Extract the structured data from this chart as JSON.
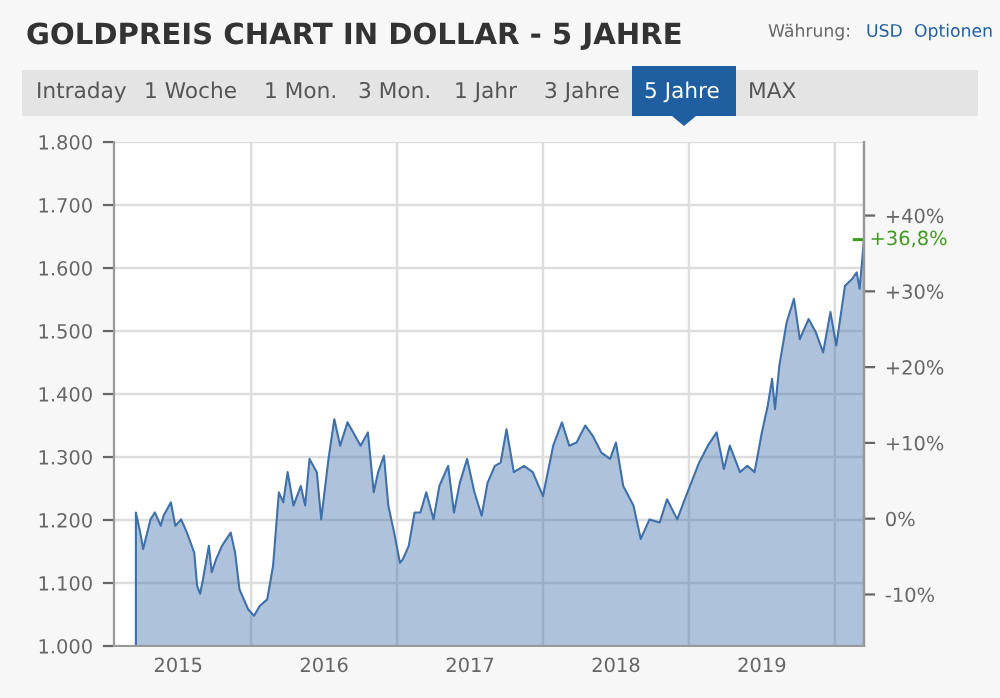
{
  "chart_data": {
    "type": "area",
    "title": "GOLDPREIS CHART IN DOLLAR - 5 JAHRE",
    "annotations": [
      "Währung:",
      "USD",
      "Optionen",
      "Intraday",
      "1 Woche",
      "1 Mon.",
      "3 Mon.",
      "1 Jahr",
      "3 Jahre",
      "5 Jahre",
      "MAX",
      {
        "text": "+36,8%",
        "x": 2019.7,
        "y": 1645
      }
    ],
    "x": [
      2014.71,
      2014.74,
      2014.76,
      2014.81,
      2014.84,
      2014.88,
      2014.9,
      2014.95,
      2014.98,
      2015.02,
      2015.06,
      2015.11,
      2015.13,
      2015.15,
      2015.17,
      2015.21,
      2015.23,
      2015.26,
      2015.3,
      2015.36,
      2015.39,
      2015.42,
      2015.48,
      2015.52,
      2015.56,
      2015.61,
      2015.65,
      2015.69,
      2015.72,
      2015.75,
      2015.79,
      2015.84,
      2015.87,
      2015.9,
      2015.95,
      2015.98,
      2016.03,
      2016.07,
      2016.11,
      2016.16,
      2016.2,
      2016.25,
      2016.3,
      2016.34,
      2016.37,
      2016.41,
      2016.44,
      2016.48,
      2016.52,
      2016.54,
      2016.58,
      2016.62,
      2016.66,
      2016.7,
      2016.75,
      2016.79,
      2016.85,
      2016.89,
      2016.93,
      2016.98,
      2017.03,
      2017.08,
      2017.12,
      2017.17,
      2017.21,
      2017.25,
      2017.3,
      2017.37,
      2017.43,
      2017.5,
      2017.57,
      2017.63,
      2017.68,
      2017.73,
      2017.79,
      2017.84,
      2017.9,
      2017.96,
      2018.0,
      2018.05,
      2018.12,
      2018.17,
      2018.23,
      2018.3,
      2018.35,
      2018.42,
      2018.48,
      2018.57,
      2018.63,
      2018.69,
      2018.74,
      2018.78,
      2018.85,
      2018.9,
      2018.95,
      2019.0,
      2019.04,
      2019.07,
      2019.09,
      2019.12,
      2019.17,
      2019.22,
      2019.26,
      2019.32,
      2019.37,
      2019.42,
      2019.47,
      2019.51,
      2019.57,
      2019.62,
      2019.65,
      2019.67,
      2019.7
    ],
    "series": [
      {
        "color": "#3f70aa",
        "values": [
          1212,
          1180,
          1154,
          1201,
          1212,
          1191,
          1207,
          1228,
          1191,
          1201,
          1180,
          1148,
          1095,
          1083,
          1106,
          1159,
          1117,
          1138,
          1159,
          1180,
          1148,
          1090,
          1058,
          1048,
          1064,
          1074,
          1127,
          1244,
          1228,
          1276,
          1223,
          1254,
          1223,
          1297,
          1276,
          1201,
          1297,
          1360,
          1318,
          1355,
          1339,
          1318,
          1339,
          1244,
          1276,
          1302,
          1223,
          1180,
          1132,
          1138,
          1159,
          1212,
          1212,
          1244,
          1201,
          1254,
          1286,
          1212,
          1259,
          1297,
          1244,
          1207,
          1259,
          1286,
          1291,
          1344,
          1276,
          1286,
          1276,
          1238,
          1318,
          1355,
          1318,
          1323,
          1350,
          1334,
          1307,
          1297,
          1323,
          1254,
          1223,
          1170,
          1201,
          1196,
          1233,
          1201,
          1238,
          1291,
          1318,
          1339,
          1281,
          1318,
          1276,
          1286,
          1276,
          1339,
          1381,
          1424,
          1376,
          1445,
          1514,
          1551,
          1487,
          1519,
          1498,
          1466,
          1530,
          1477,
          1572,
          1583,
          1593,
          1567,
          1645
        ]
      }
    ],
    "xlim": [
      2014.56,
      2019.7
    ],
    "xticks": [
      2015,
      {
        "value": 2015.5,
        "label": null
      },
      2016,
      {
        "value": 2016.5,
        "label": null
      },
      2017,
      {
        "value": 2017.5,
        "label": null
      },
      2018,
      {
        "value": 2018.5,
        "label": null
      },
      2019,
      {
        "value": 2019.5,
        "label": null
      }
    ],
    "ylim": [
      1000,
      1800
    ],
    "yticks": [
      {
        "value": 1000,
        "label": "1.000"
      },
      {
        "value": 1100,
        "label": "1.100"
      },
      {
        "value": 1200,
        "label": "1.200"
      },
      {
        "value": 1300,
        "label": "1.300"
      },
      {
        "value": 1400,
        "label": "1.400"
      },
      {
        "value": 1500,
        "label": "1.500"
      },
      {
        "value": 1600,
        "label": "1.600"
      },
      {
        "value": 1700,
        "label": "1.700"
      },
      {
        "value": 1800,
        "label": "1.800"
      }
    ],
    "y2lim": [
      -16.8,
      49.7
    ],
    "y2ticks": [
      {
        "value": -10,
        "label": "-10%"
      },
      {
        "value": 0,
        "label": "0%"
      },
      {
        "value": 10,
        "label": "+10%"
      },
      {
        "value": 20,
        "label": "+20%"
      },
      {
        "value": 30,
        "label": "+30%"
      },
      {
        "value": 40,
        "label": "+40%"
      }
    ],
    "grid": true
  }
}
